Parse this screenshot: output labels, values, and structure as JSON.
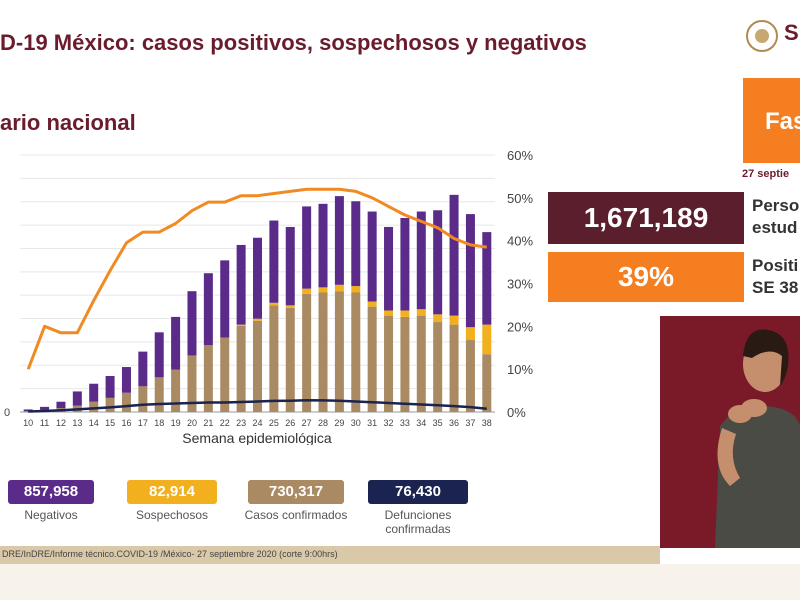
{
  "header": {
    "title": "D-19 México: casos positivos, sospechosos y negativos",
    "subtitle": "ario nacional",
    "logo_text": "S"
  },
  "fase": {
    "label": "Fas",
    "date": "27 septie"
  },
  "stats": {
    "personas_value": "1,671,189",
    "personas_label_1": "Perso",
    "personas_label_2": "estud",
    "positividad_value": "39%",
    "positividad_label_1": "Positi",
    "positividad_label_2": "SE 38"
  },
  "legend": [
    {
      "value": "857,958",
      "label": "Negativos",
      "color": "#5b2b8a"
    },
    {
      "value": "82,914",
      "label": "Sospechosos",
      "color": "#f2b01e"
    },
    {
      "value": "730,317",
      "label": "Casos confirmados",
      "color": "#a98a62"
    },
    {
      "value": "76,430",
      "label": "Defunciones confirmadas",
      "color": "#1b2350"
    }
  ],
  "footer": "DRE/InDRE/Informe técnico.COVID-19 /México- 27 septiembre 2020 (corte 9:00hrs)",
  "chart_data": {
    "type": "bar",
    "xlabel": "Semana epidemiológica",
    "categories": [
      "10",
      "11",
      "12",
      "13",
      "14",
      "15",
      "16",
      "17",
      "18",
      "19",
      "20",
      "21",
      "22",
      "23",
      "24",
      "25",
      "26",
      "27",
      "28",
      "29",
      "30",
      "31",
      "32",
      "33",
      "34",
      "35",
      "36",
      "37",
      "38"
    ],
    "y_left_ticks": [
      "0",
      "",
      "",
      "",
      "",
      "",
      "",
      "",
      "",
      "",
      "",
      ""
    ],
    "y_right_ticks": [
      "0%",
      "10%",
      "20%",
      "30%",
      "40%",
      "50%",
      "60%"
    ],
    "y_right_lim": [
      0,
      0.6
    ],
    "y_left_lim": [
      0,
      100
    ],
    "series": [
      {
        "name": "Casos confirmados",
        "color": "#a98a62",
        "values": [
          0.3,
          0.8,
          1.5,
          2.5,
          4,
          5.5,
          7.5,
          10,
          13.5,
          16.5,
          22,
          26,
          29,
          33.5,
          35.5,
          41.5,
          40.5,
          46,
          46.5,
          47,
          46.5,
          41,
          37.5,
          37,
          37.5,
          35,
          34,
          28,
          22.5
        ]
      },
      {
        "name": "Sospechosos",
        "color": "#f2b01e",
        "values": [
          0,
          0,
          0,
          0,
          0,
          0,
          0,
          0,
          0,
          0,
          0,
          0,
          0,
          0.5,
          0.8,
          1,
          1,
          2,
          2,
          2.5,
          2.5,
          2,
          2,
          2.5,
          2.5,
          3,
          3.5,
          5,
          11.5
        ]
      },
      {
        "name": "Negativos",
        "color": "#5b2b8a",
        "values": [
          0.7,
          1.2,
          2.5,
          5.5,
          7,
          8.5,
          10,
          13.5,
          17.5,
          20.5,
          25,
          28,
          30,
          31,
          31.5,
          32,
          30.5,
          32,
          32.5,
          34.5,
          33,
          35,
          32.5,
          36,
          38,
          40.5,
          47,
          44,
          36
        ]
      },
      {
        "name": "Defunciones",
        "color": "#1b2350",
        "type": "line",
        "values": [
          0.2,
          0.4,
          0.7,
          1,
          1.4,
          1.8,
          2.3,
          2.8,
          3.1,
          3.3,
          3.5,
          3.7,
          3.7,
          3.9,
          4.1,
          4.3,
          4.4,
          4.6,
          4.5,
          4.4,
          4.1,
          3.8,
          3.5,
          3.2,
          2.9,
          2.6,
          2.3,
          1.9,
          1.3
        ]
      },
      {
        "name": "Positividad",
        "color": "#f08a22",
        "type": "line",
        "axis": "right",
        "values": [
          0.1,
          0.2,
          0.185,
          0.185,
          0.26,
          0.33,
          0.395,
          0.42,
          0.42,
          0.44,
          0.47,
          0.49,
          0.49,
          0.505,
          0.505,
          0.51,
          0.515,
          0.52,
          0.52,
          0.52,
          0.515,
          0.5,
          0.48,
          0.46,
          0.445,
          0.43,
          0.405,
          0.39,
          0.385
        ]
      }
    ]
  }
}
